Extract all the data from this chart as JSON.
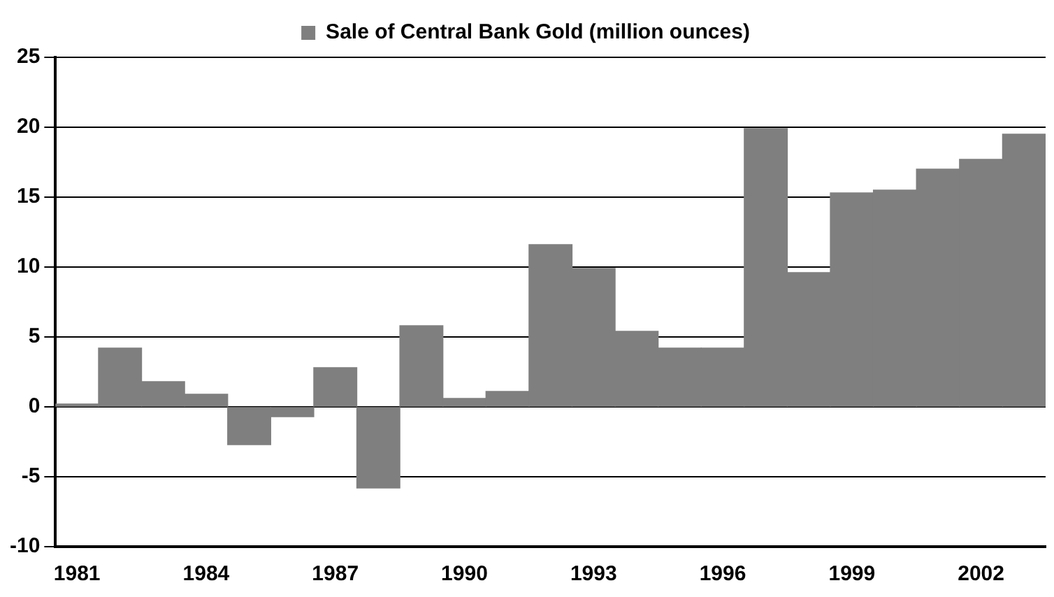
{
  "chart_data": {
    "type": "bar",
    "categories": [
      "1981",
      null,
      null,
      "1984",
      null,
      null,
      "1987",
      null,
      null,
      "1990",
      null,
      null,
      "1993",
      null,
      null,
      "1996",
      null,
      null,
      "1999",
      null,
      null,
      "2002",
      null
    ],
    "series": [
      {
        "name": "Sale of Central Bank Gold (million ounces)",
        "color": "#7f7f7f",
        "values": [
          0.2,
          4.2,
          1.8,
          0.9,
          -2.7,
          -0.7,
          2.8,
          -5.8,
          5.8,
          0.6,
          1.1,
          11.6,
          9.9,
          5.4,
          4.2,
          4.2,
          19.9,
          9.6,
          15.3,
          15.5,
          17.0,
          17.7,
          19.5
        ]
      }
    ],
    "ylim": [
      -10,
      25
    ],
    "yticks": [
      -10,
      -5,
      0,
      5,
      10,
      15,
      20,
      25
    ],
    "grid": "y",
    "legend": "top"
  }
}
